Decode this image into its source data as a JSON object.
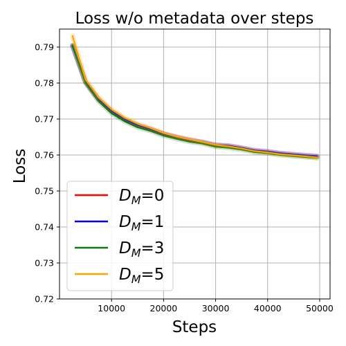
{
  "chart_data": {
    "type": "line",
    "title": "Loss w/o metadata over steps",
    "xlabel": "Steps",
    "ylabel": "Loss",
    "xlim": [
      0,
      52000
    ],
    "ylim": [
      0.72,
      0.795
    ],
    "xticks": [
      10000,
      20000,
      30000,
      40000,
      50000
    ],
    "xtick_labels": [
      "10000",
      "20000",
      "30000",
      "40000",
      "50000"
    ],
    "yticks": [
      0.72,
      0.73,
      0.74,
      0.75,
      0.76,
      0.77,
      0.78,
      0.79
    ],
    "ytick_labels": [
      "0.72",
      "0.73",
      "0.74",
      "0.75",
      "0.76",
      "0.77",
      "0.78",
      "0.79"
    ],
    "grid": true,
    "legend_position": "lower-left",
    "x": [
      2500,
      5000,
      7500,
      10000,
      12500,
      15000,
      17500,
      20000,
      22500,
      25000,
      27500,
      30000,
      32500,
      35000,
      37500,
      40000,
      42500,
      45000,
      47500,
      49500
    ],
    "series": [
      {
        "name": "D_M=0",
        "legend_main": "D",
        "legend_sub": "M",
        "legend_value": "=0",
        "color": "#ff0000",
        "values": [
          0.7903,
          0.7802,
          0.7754,
          0.7721,
          0.7698,
          0.7682,
          0.7671,
          0.7658,
          0.7649,
          0.7641,
          0.7635,
          0.7627,
          0.7625,
          0.7619,
          0.7612,
          0.7609,
          0.7604,
          0.7601,
          0.7598,
          0.7596
        ]
      },
      {
        "name": "D_M=1",
        "legend_main": "D",
        "legend_sub": "M",
        "legend_value": "=1",
        "color": "#0000ff",
        "values": [
          0.7904,
          0.7803,
          0.7755,
          0.7722,
          0.7699,
          0.7683,
          0.7672,
          0.7659,
          0.765,
          0.7642,
          0.7636,
          0.7628,
          0.7626,
          0.762,
          0.7613,
          0.761,
          0.7605,
          0.7602,
          0.7599,
          0.7597
        ]
      },
      {
        "name": "D_M=3",
        "legend_main": "D",
        "legend_sub": "M",
        "legend_value": "=3",
        "color": "#0b7a0b",
        "values": [
          0.7905,
          0.78,
          0.775,
          0.7716,
          0.7694,
          0.7677,
          0.7667,
          0.7654,
          0.7645,
          0.7637,
          0.7632,
          0.7623,
          0.762,
          0.7615,
          0.7608,
          0.7605,
          0.76,
          0.7597,
          0.7594,
          0.7592
        ]
      },
      {
        "name": "D_M=5",
        "legend_main": "D",
        "legend_sub": "M",
        "legend_value": "=5",
        "color": "#ffa500",
        "values": [
          0.7931,
          0.781,
          0.776,
          0.7727,
          0.7704,
          0.7687,
          0.7675,
          0.7661,
          0.7651,
          0.7643,
          0.7636,
          0.7628,
          0.7624,
          0.7618,
          0.7611,
          0.7607,
          0.7602,
          0.7599,
          0.7596,
          0.7593
        ]
      }
    ]
  }
}
